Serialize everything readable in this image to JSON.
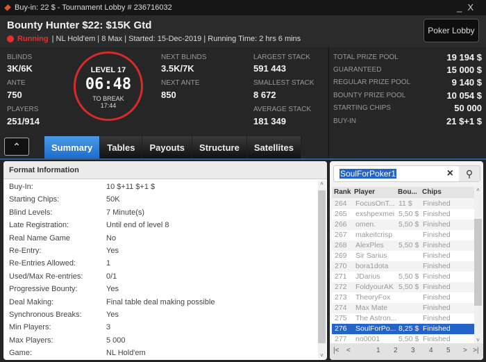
{
  "window": {
    "title": "Buy-in: 22 $ - Tournament Lobby # 236716032",
    "minimize": "_",
    "close": "X"
  },
  "header": {
    "title": "Bounty Hunter $22: $15K Gtd",
    "status": "Running",
    "info": "| NL Hold'em | 8 Max | Started: 15-Dec-2019  | Running Time: 2 hrs  6 mins",
    "lobby_button": "Poker Lobby",
    "status_color": "#e53030"
  },
  "stats": {
    "blinds_label": "BLINDS",
    "blinds": "3K/6K",
    "ante_label": "ANTE",
    "ante": "750",
    "players_label": "PLAYERS",
    "players": "251/914",
    "level": "LEVEL 17",
    "clock": "06:48",
    "to_break_label": "TO BREAK",
    "to_break": "17:44",
    "next_blinds_label": "NEXT BLINDS",
    "next_blinds": "3.5K/7K",
    "next_ante_label": "NEXT ANTE",
    "next_ante": "850",
    "largest_label": "LARGEST STACK",
    "largest": "591 443",
    "smallest_label": "SMALLEST STACK",
    "smallest": "8 672",
    "average_label": "AVERAGE STACK",
    "average": "181 349"
  },
  "prize": [
    {
      "label": "TOTAL PRIZE POOL",
      "value": "19 194 $"
    },
    {
      "label": "GUARANTEED",
      "value": "15 000 $"
    },
    {
      "label": "REGULAR PRIZE POOL",
      "value": "9 140 $"
    },
    {
      "label": "BOUNTY PRIZE POOL",
      "value": "10 054 $"
    },
    {
      "label": "STARTING CHIPS",
      "value": "50 000"
    },
    {
      "label": "BUY-IN",
      "value": "21 $+1 $"
    }
  ],
  "tabs": [
    {
      "label": "Summary",
      "active": true
    },
    {
      "label": "Tables"
    },
    {
      "label": "Payouts"
    },
    {
      "label": "Structure"
    },
    {
      "label": "Satellites"
    }
  ],
  "format": {
    "title": "Format Information",
    "rows": [
      {
        "label": "Buy-In:",
        "value": "10 $+11 $+1 $"
      },
      {
        "label": "Starting Chips:",
        "value": "50K"
      },
      {
        "label": "Blind Levels:",
        "value": "7 Minute(s)"
      },
      {
        "label": "Late Registration:",
        "value": "Until end of level 8"
      },
      {
        "label": "Real Name Game",
        "value": "No"
      },
      {
        "label": "Re-Entry:",
        "value": "Yes"
      },
      {
        "label": "Re-Entries Allowed:",
        "value": "1"
      },
      {
        "label": "Used/Max Re-entries:",
        "value": "0/1"
      },
      {
        "label": "Progressive Bounty:",
        "value": "Yes"
      },
      {
        "label": "Deal Making:",
        "value": "Final table deal making possible"
      },
      {
        "label": "Synchronous Breaks:",
        "value": "Yes"
      },
      {
        "label": "Min Players:",
        "value": "3"
      },
      {
        "label": "Max Players:",
        "value": "5 000"
      },
      {
        "label": "Game:",
        "value": "NL Hold'em"
      }
    ]
  },
  "players": {
    "search_value": "SoulForPoker1",
    "columns": [
      "Rank",
      "Player",
      "Bou...",
      "Chips"
    ],
    "rows": [
      [
        "264",
        "FocusOnT...",
        "11 $",
        "Finished"
      ],
      [
        "265",
        "exshpexmei",
        "5,50 $",
        "Finished"
      ],
      [
        "266",
        "omen.",
        "5,50 $",
        "Finished"
      ],
      [
        "267",
        "makeitcrisp",
        "",
        "Finished"
      ],
      [
        "268",
        "AlexPles",
        "5,50 $",
        "Finished"
      ],
      [
        "269",
        "Sir Sarius",
        "",
        "Finished"
      ],
      [
        "270",
        "bora1dota",
        "",
        "Finished"
      ],
      [
        "271",
        "JDarius",
        "5,50 $",
        "Finished"
      ],
      [
        "272",
        "FoldyourAK",
        "5,50 $",
        "Finished"
      ],
      [
        "273",
        "TheoryFox",
        "",
        "Finished"
      ],
      [
        "274",
        "Max Mate",
        "",
        "Finished"
      ],
      [
        "275",
        "The Astron...",
        "",
        "Finished"
      ],
      [
        "276",
        "SoulForPo...",
        "8,25 $",
        "Finished"
      ],
      [
        "277",
        "no0001",
        "5,50 $",
        "Finished"
      ]
    ],
    "selected_rank": "276",
    "pages": [
      "1",
      "2",
      "3",
      "4",
      "5"
    ]
  }
}
